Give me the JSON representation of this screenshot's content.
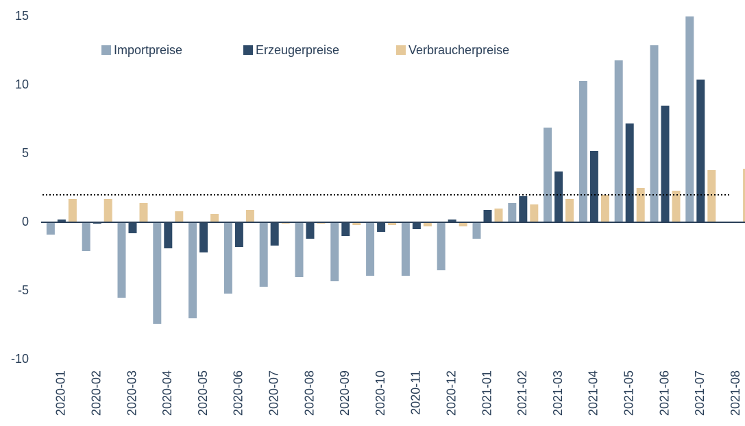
{
  "chart_data": {
    "type": "bar",
    "categories": [
      "2020-01",
      "2020-02",
      "2020-03",
      "2020-04",
      "2020-05",
      "2020-06",
      "2020-07",
      "2020-08",
      "2020-09",
      "2020-10",
      "2020-11",
      "2020-12",
      "2021-01",
      "2021-02",
      "2021-03",
      "2021-04",
      "2021-05",
      "2021-06",
      "2021-07",
      "2021-08"
    ],
    "series": [
      {
        "name": "Importpreise",
        "color": "#94a9bd",
        "values": [
          -0.9,
          -2.1,
          -5.5,
          -7.4,
          -7.0,
          -5.2,
          -4.7,
          -4.0,
          -4.3,
          -3.9,
          -3.9,
          -3.5,
          -1.2,
          1.4,
          6.9,
          10.3,
          11.8,
          12.9,
          15.0,
          null
        ]
      },
      {
        "name": "Erzeugerpreise",
        "color": "#2e4a68",
        "values": [
          0.2,
          -0.1,
          -0.8,
          -1.9,
          -2.2,
          -1.8,
          -1.7,
          -1.2,
          -1.0,
          -0.7,
          -0.5,
          0.2,
          0.9,
          1.9,
          3.7,
          5.2,
          7.2,
          8.5,
          10.4,
          null
        ]
      },
      {
        "name": "Verbraucherpreise",
        "color": "#e6c99a",
        "values": [
          1.7,
          1.7,
          1.4,
          0.8,
          0.6,
          0.9,
          -0.1,
          -0.1,
          -0.2,
          -0.2,
          -0.3,
          -0.3,
          1.0,
          1.3,
          1.7,
          2.0,
          2.5,
          2.3,
          3.8,
          3.9
        ]
      }
    ],
    "ylim": [
      -10,
      15
    ],
    "yticks": [
      -10,
      -5,
      0,
      5,
      10,
      15
    ],
    "reference_line": 2,
    "legend": "top"
  }
}
